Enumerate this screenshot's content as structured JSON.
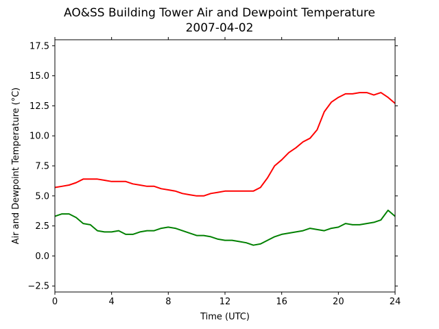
{
  "chart_data": {
    "type": "line",
    "title": "AO&SS Building Tower Air and Dewpoint Temperature",
    "subtitle": "2007-04-02",
    "xlabel": "Time (UTC)",
    "ylabel": "Air and Dewpoint Temperature (°C)",
    "xlim": [
      0,
      24
    ],
    "ylim": [
      -3.0,
      18.0
    ],
    "xticks": [
      0,
      4,
      8,
      12,
      16,
      20,
      24
    ],
    "xtick_labels": [
      "0",
      "4",
      "8",
      "12",
      "16",
      "20",
      "24"
    ],
    "yticks": [
      -2.5,
      0.0,
      2.5,
      5.0,
      7.5,
      10.0,
      12.5,
      15.0,
      17.5
    ],
    "ytick_labels": [
      "−2.5",
      "0.0",
      "2.5",
      "5.0",
      "7.5",
      "10.0",
      "12.5",
      "15.0",
      "17.5"
    ],
    "grid": false,
    "legend": "none",
    "series": [
      {
        "color": "#ff0000",
        "x": [
          0,
          0.5,
          1,
          1.5,
          2,
          2.5,
          3,
          3.5,
          4,
          4.5,
          5,
          5.5,
          6,
          6.5,
          7,
          7.5,
          8,
          8.5,
          9,
          9.5,
          10,
          10.5,
          11,
          11.5,
          12,
          12.5,
          13,
          13.5,
          14,
          14.5,
          15,
          15.5,
          16,
          16.5,
          17,
          17.5,
          18,
          18.5,
          19,
          19.5,
          20,
          20.5,
          21,
          21.5,
          22,
          22.5,
          23,
          23.5,
          24
        ],
        "y": [
          5.7,
          5.8,
          5.9,
          6.1,
          6.4,
          6.4,
          6.4,
          6.3,
          6.2,
          6.2,
          6.2,
          6.0,
          5.9,
          5.8,
          5.8,
          5.6,
          5.5,
          5.4,
          5.2,
          5.1,
          5.0,
          5.0,
          5.2,
          5.3,
          5.4,
          5.4,
          5.4,
          5.4,
          5.4,
          5.7,
          6.5,
          7.5,
          8.0,
          8.6,
          9.0,
          9.5,
          9.8,
          10.5,
          12.0,
          12.8,
          13.2,
          13.5,
          13.5,
          13.6,
          13.6,
          13.4,
          13.6,
          13.2,
          12.7
        ]
      },
      {
        "color": "#008000",
        "x": [
          0,
          0.5,
          1,
          1.5,
          2,
          2.5,
          3,
          3.5,
          4,
          4.5,
          5,
          5.5,
          6,
          6.5,
          7,
          7.5,
          8,
          8.5,
          9,
          9.5,
          10,
          10.5,
          11,
          11.5,
          12,
          12.5,
          13,
          13.5,
          14,
          14.5,
          15,
          15.5,
          16,
          16.5,
          17,
          17.5,
          18,
          18.5,
          19,
          19.5,
          20,
          20.5,
          21,
          21.5,
          22,
          22.5,
          23,
          23.5,
          24
        ],
        "y": [
          3.3,
          3.5,
          3.5,
          3.2,
          2.7,
          2.6,
          2.1,
          2.0,
          2.0,
          2.1,
          1.8,
          1.8,
          2.0,
          2.1,
          2.1,
          2.3,
          2.4,
          2.3,
          2.1,
          1.9,
          1.7,
          1.7,
          1.6,
          1.4,
          1.3,
          1.3,
          1.2,
          1.1,
          0.9,
          1.0,
          1.3,
          1.6,
          1.8,
          1.9,
          2.0,
          2.1,
          2.3,
          2.2,
          2.1,
          2.3,
          2.4,
          2.7,
          2.6,
          2.6,
          2.7,
          2.8,
          3.0,
          3.8,
          3.3
        ]
      }
    ]
  }
}
